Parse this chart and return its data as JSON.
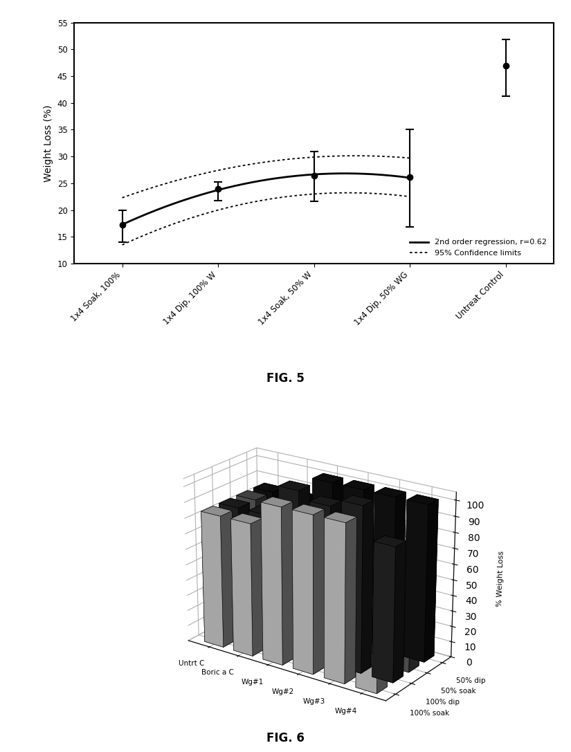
{
  "fig5": {
    "ylabel": "Weight Loss (%)",
    "ylim": [
      10,
      55
    ],
    "yticks": [
      10,
      15,
      20,
      25,
      30,
      35,
      40,
      45,
      50,
      55
    ],
    "xtick_labels": [
      "1x4 Soak, 100%",
      "1x4 Dip, 100% W",
      "1x4 Soak, 50% W",
      "1x4 Dip, 50% WG",
      "Untreat Control"
    ],
    "x_positions": [
      1,
      2,
      3,
      4,
      5
    ],
    "data_y": [
      17.2,
      24.0,
      26.4,
      26.1,
      47.0
    ],
    "data_yerr_upper": [
      2.8,
      1.2,
      4.5,
      9.0,
      4.8
    ],
    "data_yerr_lower": [
      3.2,
      2.2,
      4.8,
      9.2,
      5.8
    ],
    "conf_upper_pts": [
      22.5,
      26.8,
      30.5,
      29.5
    ],
    "conf_lower_pts": [
      13.0,
      21.5,
      21.5,
      23.0
    ],
    "legend_solid": "2nd order regression, r=0.62",
    "legend_dotted": "95% Confidence limits"
  },
  "fig6": {
    "ylabel": "% Weight Loss",
    "ylim": [
      0,
      110
    ],
    "yticks": [
      0,
      10,
      20,
      30,
      40,
      50,
      60,
      70,
      80,
      90,
      100
    ],
    "categories": [
      "Untrt C",
      "Boric a C",
      "Wg#1",
      "Wg#2",
      "Wg#3",
      "Wg#4"
    ],
    "series_order": [
      "100% soak",
      "100% dip",
      "50% soak",
      "50% dip"
    ],
    "series_data": {
      "100% soak": [
        85,
        85,
        100,
        100,
        100,
        25
      ],
      "100% dip": [
        85,
        85,
        105,
        100,
        105,
        85
      ],
      "50% soak": [
        85,
        85,
        30,
        80,
        45,
        30
      ],
      "50% dip": [
        85,
        85,
        100,
        100,
        100,
        100
      ]
    },
    "bar_colors": {
      "100% soak": "#bbbbbb",
      "100% dip": "#222222",
      "50% soak": "#555555",
      "50% dip": "#111111"
    },
    "bar_hatch": {
      "100% soak": "...",
      "100% dip": "",
      "50% soak": "",
      "50% dip": ""
    }
  }
}
